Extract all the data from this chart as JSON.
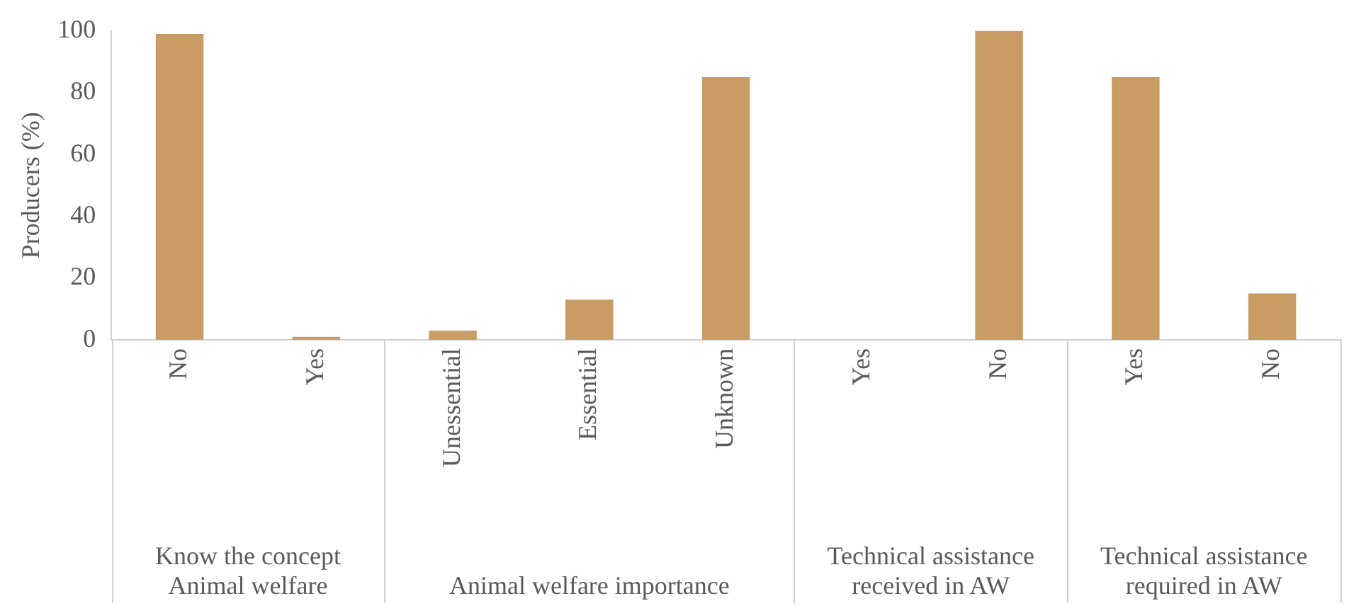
{
  "chart_data": {
    "type": "bar",
    "ylabel": "Producers (%)",
    "categories": [
      "No",
      "Yes",
      "Unessential",
      "Essential",
      "Unknown",
      "Yes",
      "No",
      "Yes",
      "No"
    ],
    "values": [
      99,
      1,
      3,
      13,
      85,
      0,
      100,
      85,
      15
    ],
    "color": "#c99c65",
    "ylim": [
      0,
      100
    ],
    "yticks": [
      0,
      20,
      40,
      60,
      80,
      100
    ],
    "grid": false,
    "legend": false,
    "annotations": [
      "Know the concept Animal welfare",
      "Animal welfare importance",
      "Technical assistance received in AW",
      "Technical assistance required in AW"
    ]
  }
}
